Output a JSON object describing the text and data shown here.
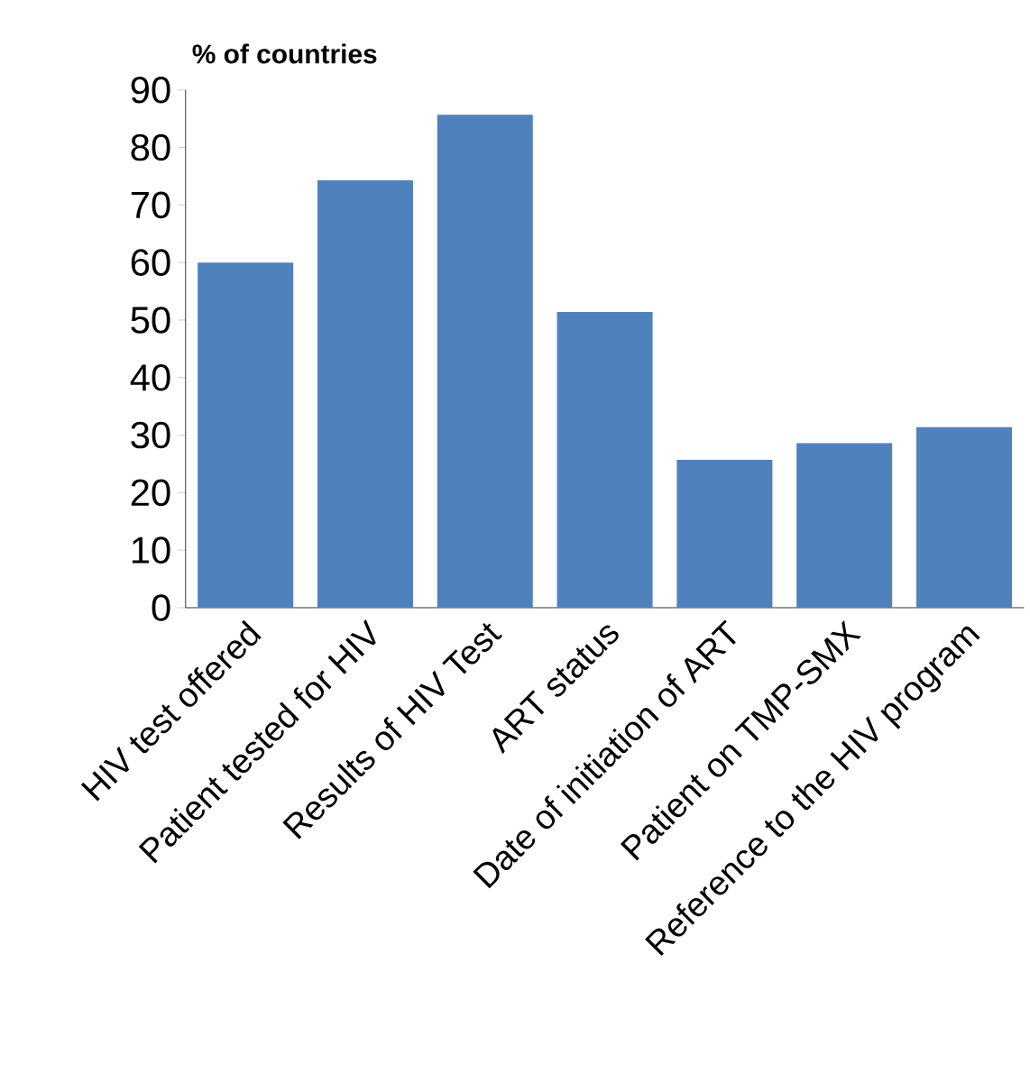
{
  "chart_data": {
    "type": "bar",
    "ylabel": "% of countries",
    "categories": [
      "HIV test offered",
      "Patient tested for HIV",
      "Results of HIV Test",
      "ART status",
      "Date of initiation of ART",
      "Patient on TMP-SMX",
      "Reference to the HIV program"
    ],
    "values": [
      60,
      74.3,
      85.7,
      51.4,
      25.7,
      28.6,
      31.4
    ],
    "color": "#4f81bd",
    "ylim": [
      0,
      90
    ],
    "yticks": [
      0,
      10,
      20,
      30,
      40,
      50,
      60,
      70,
      80,
      90
    ],
    "grid": false
  }
}
